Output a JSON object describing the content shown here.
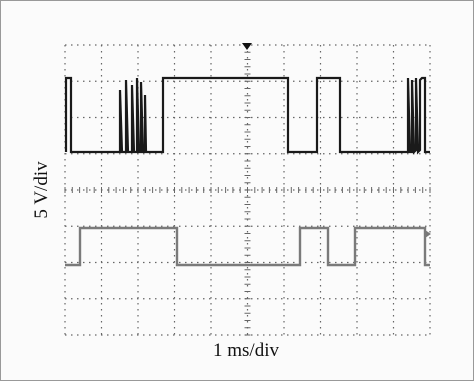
{
  "y_label": "5 V/div",
  "x_label": "1 ms/div"
}
